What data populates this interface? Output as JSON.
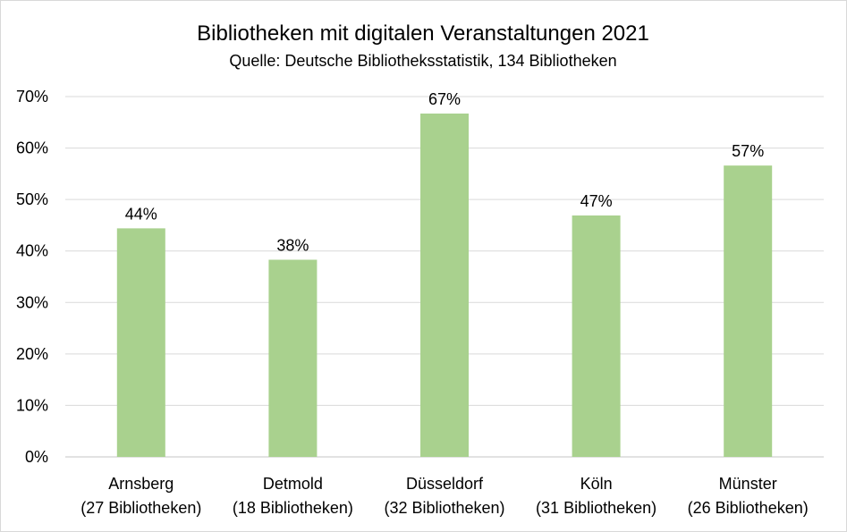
{
  "chart_data": {
    "type": "bar",
    "title": "Bibliotheken mit digitalen Veranstaltungen 2021",
    "subtitle": "Quelle: Deutsche Bibliotheksstatistik, 134 Bibliotheken",
    "categories": [
      [
        "Arnsberg",
        "(27 Bibliotheken)"
      ],
      [
        "Detmold",
        "(18 Bibliotheken)"
      ],
      [
        "Düsseldorf",
        "(32 Bibliotheken)"
      ],
      [
        "Köln",
        "(31 Bibliotheken)"
      ],
      [
        "Münster",
        "(26 Bibliotheken)"
      ]
    ],
    "values": [
      44.4,
      38.3,
      66.7,
      46.9,
      56.6
    ],
    "data_labels": [
      "44%",
      "38%",
      "67%",
      "47%",
      "57%"
    ],
    "y_ticks": [
      "0%",
      "10%",
      "20%",
      "30%",
      "40%",
      "50%",
      "60%",
      "70%"
    ],
    "ylim": [
      0,
      70
    ],
    "grid": true,
    "legend": "none",
    "bar_color": "#a9d18e",
    "grid_color": "#d9d9d9",
    "xlabel": "",
    "ylabel": ""
  }
}
